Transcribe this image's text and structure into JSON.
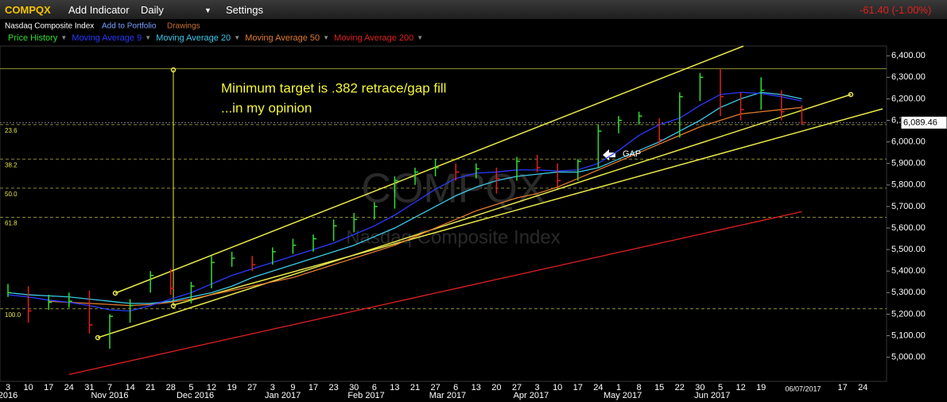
{
  "toolbar": {
    "symbol": "COMPQX",
    "add_indicator": "Add Indicator",
    "interval": "Daily",
    "settings": "Settings",
    "change": "-61.40 (-1.00%)",
    "name": "Nasdaq Composite Index",
    "add_to_portfolio": "Add to Portfolio",
    "drawings": "Drawings"
  },
  "chart_data": {
    "type": "ohlc",
    "watermark": "COMPQX",
    "watermark_subtitle": "Nasdaq Composite Index",
    "categories": [
      "3",
      "10",
      "17",
      "24",
      "31",
      "7",
      "14",
      "21",
      "28",
      "5",
      "12",
      "19",
      "27",
      "3",
      "9",
      "17",
      "23",
      "30",
      "6",
      "13",
      "21",
      "27",
      "6",
      "13",
      "20",
      "27",
      "3",
      "10",
      "17",
      "24",
      "1",
      "8",
      "15",
      "22",
      "30",
      "5",
      "12",
      "19",
      null,
      null,
      null,
      "17",
      "24"
    ],
    "month_labels": [
      "2016",
      "Nov 2016",
      "Dec 2016",
      "Jan 2017",
      "Feb 2017",
      "Mar 2017",
      "Apr 2017",
      "May 2017",
      "Jun 2017"
    ],
    "ylim": [
      4888,
      6445
    ],
    "yticks": [
      {
        "value": 5000,
        "label": "5,000.00"
      },
      {
        "value": 5100,
        "label": "5,100.00"
      },
      {
        "value": 5200,
        "label": "5,200.00"
      },
      {
        "value": 5300,
        "label": "5,300.00"
      },
      {
        "value": 5400,
        "label": "5,400.00"
      },
      {
        "value": 5500,
        "label": "5,500.00"
      },
      {
        "value": 5600,
        "label": "5,600.00"
      },
      {
        "value": 5700,
        "label": "5,700.00"
      },
      {
        "value": 5800,
        "label": "5,800.00"
      },
      {
        "value": 5900,
        "label": "5,900.00"
      },
      {
        "value": 6000,
        "label": "6,000.00"
      },
      {
        "value": 6100,
        "label": "6,100.00"
      },
      {
        "value": 6200,
        "label": "6,200.00"
      },
      {
        "value": 6300,
        "label": "6,300.00"
      },
      {
        "value": 6400,
        "label": "6,400.00"
      }
    ],
    "down_color": "#e02020",
    "series": [
      {
        "name": "Price History",
        "color": "#33dd33",
        "high": [
          5340,
          5330,
          5290,
          5300,
          5310,
          5200,
          5270,
          5400,
          5410,
          5350,
          5470,
          5490,
          5470,
          5510,
          5550,
          5570,
          5640,
          5670,
          5720,
          5840,
          5880,
          5920,
          5900,
          5900,
          5880,
          5930,
          5940,
          5900,
          5920,
          6080,
          6120,
          6140,
          6110,
          6230,
          6320,
          6340,
          6230,
          6300,
          6240,
          6170,
          null,
          null,
          null
        ],
        "low": [
          5280,
          5160,
          5220,
          5230,
          5110,
          5040,
          5160,
          5300,
          5290,
          5250,
          5320,
          5420,
          5400,
          5430,
          5480,
          5490,
          5540,
          5580,
          5640,
          5690,
          5800,
          5840,
          5820,
          5830,
          5760,
          5820,
          5860,
          5790,
          5820,
          5880,
          6040,
          6080,
          5990,
          6020,
          6190,
          6120,
          6100,
          6150,
          6100,
          6080,
          null,
          null,
          null
        ],
        "values": [
          5300,
          5215,
          5255,
          5260,
          5150,
          5190,
          5240,
          5380,
          5320,
          5330,
          5440,
          5460,
          5430,
          5490,
          5520,
          5550,
          5610,
          5640,
          5700,
          5820,
          5860,
          5880,
          5860,
          5875,
          5830,
          5910,
          5880,
          5820,
          5910,
          6050,
          6100,
          6120,
          6010,
          6210,
          6300,
          6210,
          6150,
          6240,
          6140,
          6089.46,
          null,
          null,
          null
        ]
      },
      {
        "name": "Moving Average 9",
        "color": "#2a3aff",
        "values": [
          5290,
          5280,
          5265,
          5255,
          5240,
          5220,
          5215,
          5240,
          5270,
          5300,
          5340,
          5380,
          5410,
          5440,
          5470,
          5500,
          5530,
          5570,
          5610,
          5660,
          5720,
          5780,
          5830,
          5855,
          5860,
          5870,
          5870,
          5865,
          5870,
          5900,
          5960,
          6030,
          6080,
          6110,
          6170,
          6220,
          6230,
          6225,
          6210,
          6190,
          null,
          null,
          null
        ]
      },
      {
        "name": "Moving Average 20",
        "color": "#3cc8e8",
        "values": [
          5300,
          5290,
          5285,
          5280,
          5270,
          5260,
          5250,
          5250,
          5260,
          5280,
          5300,
          5330,
          5370,
          5400,
          5430,
          5460,
          5490,
          5520,
          5560,
          5600,
          5650,
          5700,
          5750,
          5790,
          5820,
          5840,
          5850,
          5860,
          5860,
          5880,
          5920,
          5960,
          6000,
          6050,
          6100,
          6160,
          6200,
          6230,
          6220,
          6200,
          null,
          null,
          null
        ]
      },
      {
        "name": "Moving Average 50",
        "color": "#e07a30",
        "values": [
          null,
          null,
          5260,
          5255,
          5250,
          5245,
          5240,
          5245,
          5255,
          5270,
          5290,
          5310,
          5330,
          5350,
          5370,
          5400,
          5430,
          5460,
          5490,
          5520,
          5560,
          5600,
          5640,
          5680,
          5710,
          5740,
          5760,
          5790,
          5830,
          5870,
          5910,
          5950,
          5990,
          6030,
          6070,
          6100,
          6130,
          6140,
          6150,
          6160,
          null,
          null,
          null
        ]
      },
      {
        "name": "Moving Average 200",
        "color": "#e02020",
        "values": [
          null,
          null,
          null,
          4920,
          4941,
          4962,
          4983,
          5004,
          5025,
          5046,
          5067,
          5088,
          5109,
          5130,
          5151,
          5172,
          5193,
          5214,
          5235,
          5256,
          5277,
          5298,
          5319,
          5340,
          5361,
          5382,
          5403,
          5424,
          5445,
          5466,
          5487,
          5508,
          5529,
          5550,
          5571,
          5592,
          5613,
          5634,
          5655,
          5676,
          null,
          null,
          null
        ]
      }
    ],
    "last_value": {
      "value": 6089.46,
      "label": "6,089.46"
    },
    "last_date": "06/07/2017",
    "resistance": 6340,
    "fib_levels": [
      {
        "value": 6080,
        "label": "23.6"
      },
      {
        "value": 5920,
        "label": "38.2"
      },
      {
        "value": 5785,
        "label": "50.0"
      },
      {
        "value": 5650,
        "label": "61.8"
      },
      {
        "value": 5225,
        "label": "100.0"
      }
    ],
    "annotations": [
      "Minimum target is .382 retrace/gap fill",
      "...in my opinion",
      "GAP"
    ]
  }
}
